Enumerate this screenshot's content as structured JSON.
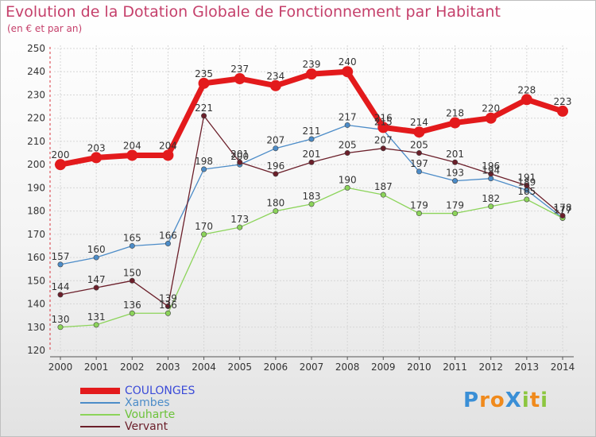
{
  "header": {
    "title": "Evolution de la Dotation Globale de Fonctionnement par Habitant",
    "subtitle": "(en € et par an)"
  },
  "logo": {
    "text": "ProXiti",
    "letters": [
      "P",
      "r",
      "o",
      "X",
      "i",
      "t",
      "i"
    ],
    "colors": [
      "#3a8fd6",
      "#f08a1c",
      "#f08a1c",
      "#3a8fd6",
      "#8cc63f",
      "#f08a1c",
      "#8cc63f"
    ]
  },
  "chart_data": {
    "type": "line",
    "title": "Evolution de la Dotation Globale de Fonctionnement par Habitant",
    "subtitle": "(en € et par an)",
    "xlabel": "",
    "ylabel": "",
    "x": [
      "2000",
      "2001",
      "2002",
      "2003",
      "2004",
      "2005",
      "2006",
      "2007",
      "2008",
      "2009",
      "2010",
      "2011",
      "2012",
      "2013",
      "2014"
    ],
    "ylim": [
      120,
      250
    ],
    "yticks": [
      120,
      130,
      140,
      150,
      160,
      170,
      180,
      190,
      200,
      210,
      220,
      230,
      240,
      250
    ],
    "legend_position": "bottom-left",
    "series": [
      {
        "name": "COULONGES",
        "color": "#e31a1c",
        "text_color": "#3b4bd8",
        "bold": true,
        "values": [
          200,
          203,
          204,
          204,
          235,
          237,
          234,
          239,
          240,
          216,
          214,
          218,
          220,
          228,
          223
        ]
      },
      {
        "name": "Xambes",
        "color": "#4c8cc8",
        "text_color": "#4c8cc8",
        "bold": false,
        "values": [
          157,
          160,
          165,
          166,
          198,
          200,
          207,
          211,
          217,
          215,
          197,
          193,
          194,
          189,
          177
        ]
      },
      {
        "name": "Vouharte",
        "color": "#8cd45a",
        "text_color": "#6cc23a",
        "bold": false,
        "values": [
          130,
          131,
          136,
          136,
          170,
          173,
          180,
          183,
          190,
          187,
          179,
          179,
          182,
          185,
          177
        ]
      },
      {
        "name": "Vervant",
        "color": "#6b1f2a",
        "text_color": "#6b1f2a",
        "bold": false,
        "values": [
          144,
          147,
          150,
          139,
          221,
          201,
          196,
          201,
          205,
          207,
          205,
          201,
          196,
          191,
          178
        ]
      }
    ]
  }
}
